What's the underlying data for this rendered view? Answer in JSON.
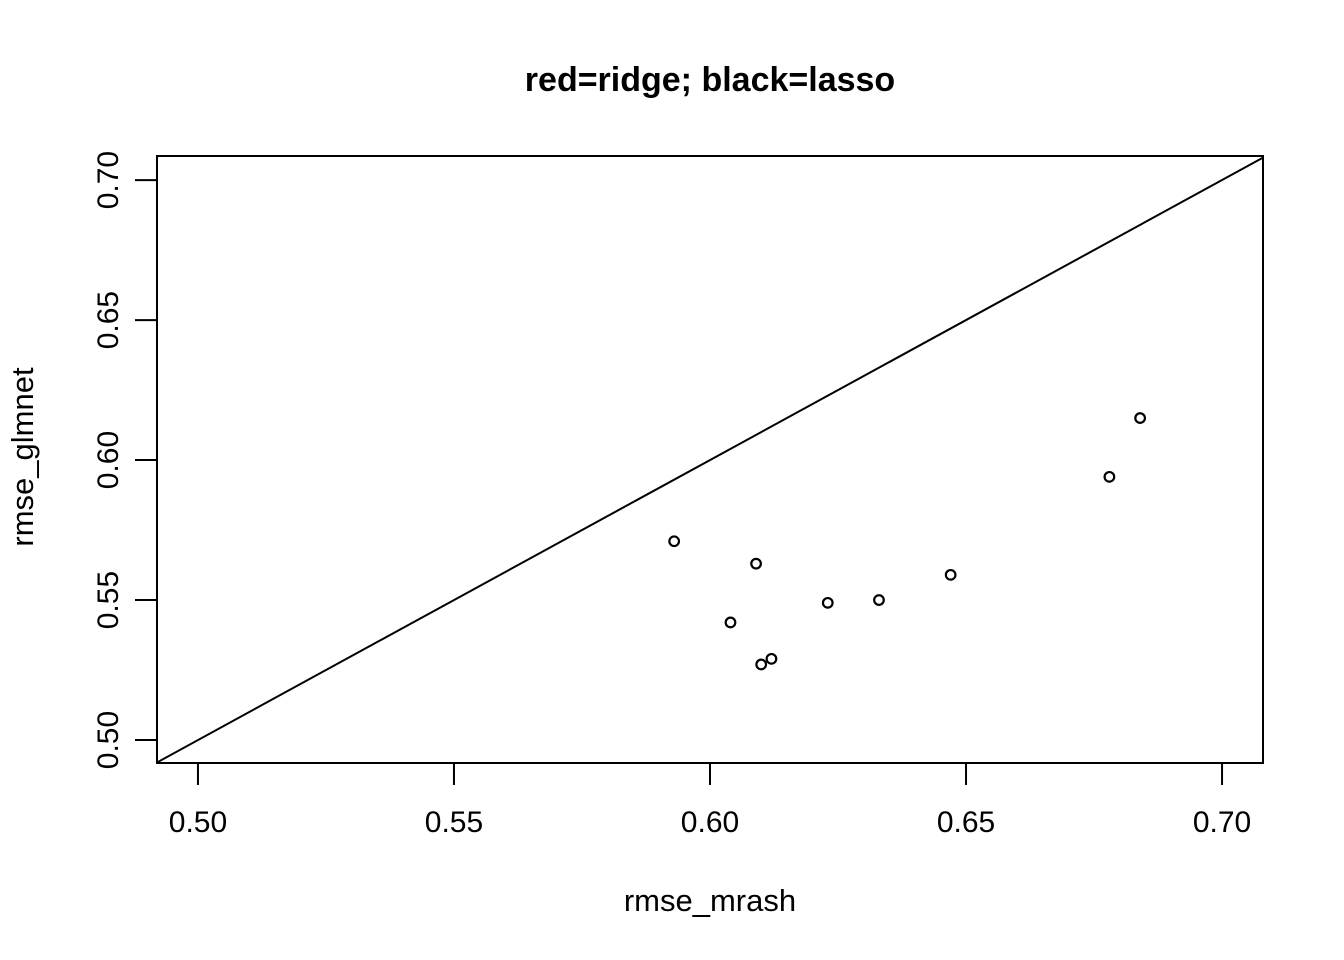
{
  "chart_data": {
    "type": "scatter",
    "title": "red=ridge; black=lasso",
    "xlabel": "rmse_mrash",
    "ylabel": "rmse_glmnet",
    "xlim": [
      0.492,
      0.708
    ],
    "ylim": [
      0.4918,
      0.7086
    ],
    "x_ticks": [
      0.5,
      0.55,
      0.6,
      0.65,
      0.7
    ],
    "y_ticks": [
      0.5,
      0.55,
      0.6,
      0.65,
      0.7
    ],
    "x_tick_labels": [
      "0.50",
      "0.55",
      "0.60",
      "0.65",
      "0.70"
    ],
    "y_tick_labels": [
      "0.50",
      "0.55",
      "0.60",
      "0.65",
      "0.70"
    ],
    "grid": false,
    "legend_position": "none",
    "color_convention": {
      "ridge": "#ff0000",
      "lasso": "#000000"
    },
    "axis_color": "#000000",
    "background_color": "#ffffff",
    "reference_line": {
      "type": "identity",
      "label": "y = x",
      "color": "#000000",
      "x_from": 0.492,
      "x_to": 0.708
    },
    "series": [
      {
        "name": "lasso",
        "marker": "open-circle",
        "color": "#000000",
        "points": [
          {
            "x": 0.593,
            "y": 0.571
          },
          {
            "x": 0.609,
            "y": 0.563
          },
          {
            "x": 0.604,
            "y": 0.542
          },
          {
            "x": 0.61,
            "y": 0.527
          },
          {
            "x": 0.612,
            "y": 0.529
          },
          {
            "x": 0.623,
            "y": 0.549
          },
          {
            "x": 0.633,
            "y": 0.55
          },
          {
            "x": 0.647,
            "y": 0.559
          },
          {
            "x": 0.678,
            "y": 0.594
          },
          {
            "x": 0.684,
            "y": 0.615
          }
        ]
      }
    ]
  }
}
